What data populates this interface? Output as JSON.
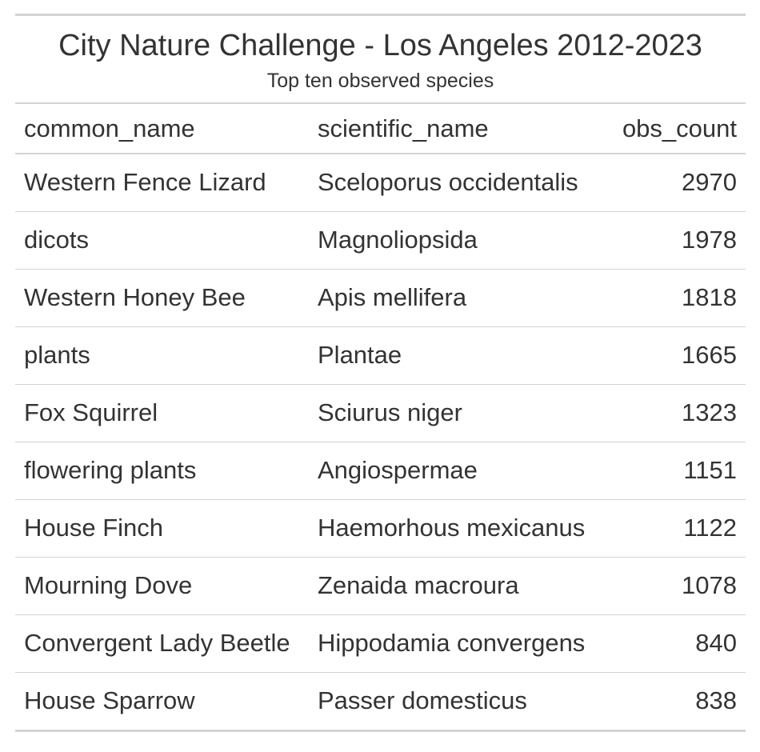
{
  "table": {
    "title": "City Nature Challenge - Los Angeles 2012-2023",
    "subtitle": "Top ten observed species",
    "columns": [
      "common_name",
      "scientific_name",
      "obs_count"
    ]
  },
  "chart_data": {
    "type": "table",
    "title": "City Nature Challenge - Los Angeles 2012-2023",
    "subtitle": "Top ten observed species",
    "columns": [
      "common_name",
      "scientific_name",
      "obs_count"
    ],
    "rows": [
      [
        "Western Fence Lizard",
        "Sceloporus occidentalis",
        2970
      ],
      [
        "dicots",
        "Magnoliopsida",
        1978
      ],
      [
        "Western Honey Bee",
        "Apis mellifera",
        1818
      ],
      [
        "plants",
        "Plantae",
        1665
      ],
      [
        "Fox Squirrel",
        "Sciurus niger",
        1323
      ],
      [
        "flowering plants",
        "Angiospermae",
        1151
      ],
      [
        "House Finch",
        "Haemorhous mexicanus",
        1122
      ],
      [
        "Mourning Dove",
        "Zenaida macroura",
        1078
      ],
      [
        "Convergent Lady Beetle",
        "Hippodamia convergens",
        840
      ],
      [
        "House Sparrow",
        "Passer domesticus",
        838
      ]
    ]
  }
}
